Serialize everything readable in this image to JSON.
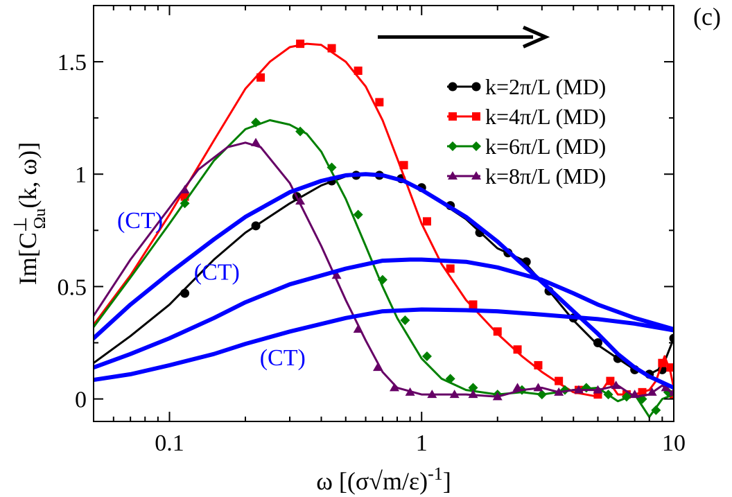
{
  "chart_data": {
    "type": "line",
    "panel_label": "(c)",
    "xscale": "log",
    "xlim": [
      0.05,
      10
    ],
    "ylim": [
      -0.1,
      1.75
    ],
    "xticks": [
      0.1,
      1,
      10
    ],
    "xtick_labels": [
      "0.1",
      "1",
      "10"
    ],
    "yticks": [
      0,
      0.5,
      1,
      1.5
    ],
    "ytick_labels": [
      "0",
      "0.5",
      "1",
      "1.5"
    ],
    "xlabel": {
      "pre": "ω [(σ√m/ε)",
      "sup": "-1",
      "post": "]"
    },
    "ylabel": {
      "pre": "Im[C",
      "sup": "⊥",
      "sub": "Ωu",
      "post": "(k, ω)]"
    },
    "arrow": {
      "from_x": 0.67,
      "to_x": 3.1,
      "y": 1.61,
      "color": "#000000"
    },
    "series": [
      {
        "name": "k=2π/L (MD)",
        "color": "#000000",
        "marker": "circle",
        "line": [
          [
            0.05,
            0.16
          ],
          [
            0.07,
            0.28
          ],
          [
            0.1,
            0.42
          ],
          [
            0.15,
            0.62
          ],
          [
            0.2,
            0.74
          ],
          [
            0.3,
            0.87
          ],
          [
            0.4,
            0.95
          ],
          [
            0.5,
            0.99
          ],
          [
            0.6,
            1.0
          ],
          [
            0.7,
            0.995
          ],
          [
            0.85,
            0.97
          ],
          [
            1.0,
            0.93
          ],
          [
            1.5,
            0.8
          ],
          [
            2.0,
            0.67
          ],
          [
            2.5,
            0.62
          ],
          [
            3.0,
            0.52
          ],
          [
            4.0,
            0.35
          ],
          [
            5.0,
            0.24
          ],
          [
            6.0,
            0.18
          ],
          [
            7.0,
            0.13
          ],
          [
            8.0,
            0.11
          ],
          [
            9.0,
            0.14
          ],
          [
            10,
            0.27
          ]
        ],
        "points": [
          [
            0.115,
            0.47
          ],
          [
            0.22,
            0.77
          ],
          [
            0.32,
            0.9
          ],
          [
            0.44,
            0.97
          ],
          [
            0.55,
            0.995
          ],
          [
            0.68,
            0.995
          ],
          [
            0.83,
            0.98
          ],
          [
            1.0,
            0.94
          ],
          [
            1.3,
            0.86
          ],
          [
            1.7,
            0.74
          ],
          [
            2.2,
            0.65
          ],
          [
            2.6,
            0.61
          ],
          [
            3.2,
            0.48
          ],
          [
            4.0,
            0.36
          ],
          [
            5.0,
            0.25
          ],
          [
            6.0,
            0.18
          ],
          [
            7.0,
            0.13
          ],
          [
            8.0,
            0.11
          ],
          [
            9.0,
            0.13
          ],
          [
            10,
            0.27
          ]
        ]
      },
      {
        "name": "k=4π/L (MD)",
        "color": "#ff0000",
        "marker": "square",
        "line": [
          [
            0.05,
            0.33
          ],
          [
            0.07,
            0.55
          ],
          [
            0.1,
            0.82
          ],
          [
            0.15,
            1.15
          ],
          [
            0.2,
            1.38
          ],
          [
            0.25,
            1.5
          ],
          [
            0.3,
            1.565
          ],
          [
            0.35,
            1.58
          ],
          [
            0.4,
            1.575
          ],
          [
            0.5,
            1.5
          ],
          [
            0.6,
            1.39
          ],
          [
            0.7,
            1.24
          ],
          [
            0.8,
            1.07
          ],
          [
            1.0,
            0.78
          ],
          [
            1.2,
            0.6
          ],
          [
            1.5,
            0.44
          ],
          [
            2.0,
            0.29
          ],
          [
            2.5,
            0.19
          ],
          [
            3.0,
            0.12
          ],
          [
            3.5,
            0.07
          ],
          [
            4.0,
            0.03
          ],
          [
            5.0,
            0.01
          ],
          [
            5.5,
            0.08
          ],
          [
            6.0,
            0.02
          ],
          [
            7.0,
            0.02
          ],
          [
            8.0,
            0.04
          ],
          [
            8.5,
            0.08
          ],
          [
            9.2,
            0.19
          ],
          [
            9.7,
            0.12
          ],
          [
            10,
            0.05
          ]
        ],
        "points": [
          [
            0.115,
            0.9
          ],
          [
            0.23,
            1.43
          ],
          [
            0.33,
            1.58
          ],
          [
            0.44,
            1.56
          ],
          [
            0.56,
            1.46
          ],
          [
            0.68,
            1.32
          ],
          [
            0.85,
            1.04
          ],
          [
            1.05,
            0.79
          ],
          [
            1.3,
            0.58
          ],
          [
            1.6,
            0.42
          ],
          [
            2.0,
            0.3
          ],
          [
            2.4,
            0.22
          ],
          [
            2.9,
            0.15
          ],
          [
            3.5,
            0.08
          ],
          [
            4.2,
            0.04
          ],
          [
            5.0,
            0.02
          ],
          [
            5.6,
            0.08
          ],
          [
            6.5,
            0.02
          ],
          [
            7.5,
            0.03
          ],
          [
            9.0,
            0.16
          ],
          [
            9.7,
            0.14
          ],
          [
            10,
            0.02
          ]
        ]
      },
      {
        "name": "k=6π/L (MD)",
        "color": "#008000",
        "marker": "diamond",
        "line": [
          [
            0.05,
            0.32
          ],
          [
            0.07,
            0.54
          ],
          [
            0.1,
            0.78
          ],
          [
            0.15,
            1.06
          ],
          [
            0.2,
            1.2
          ],
          [
            0.25,
            1.24
          ],
          [
            0.3,
            1.22
          ],
          [
            0.35,
            1.18
          ],
          [
            0.4,
            1.1
          ],
          [
            0.5,
            0.89
          ],
          [
            0.6,
            0.68
          ],
          [
            0.7,
            0.5
          ],
          [
            0.8,
            0.36
          ],
          [
            1.0,
            0.18
          ],
          [
            1.2,
            0.09
          ],
          [
            1.5,
            0.04
          ],
          [
            2.0,
            0.02
          ],
          [
            2.5,
            0.03
          ],
          [
            3.0,
            0.02
          ],
          [
            4.0,
            0.04
          ],
          [
            5.0,
            0.05
          ],
          [
            6.0,
            -0.01
          ],
          [
            7.0,
            0.02
          ],
          [
            8.0,
            -0.08
          ],
          [
            9.0,
            0.0
          ],
          [
            10,
            0.02
          ]
        ],
        "points": [
          [
            0.115,
            0.87
          ],
          [
            0.22,
            1.23
          ],
          [
            0.33,
            1.19
          ],
          [
            0.44,
            1.03
          ],
          [
            0.56,
            0.82
          ],
          [
            0.7,
            0.53
          ],
          [
            0.86,
            0.35
          ],
          [
            1.05,
            0.19
          ],
          [
            1.3,
            0.09
          ],
          [
            1.6,
            0.05
          ],
          [
            2.0,
            0.02
          ],
          [
            2.5,
            0.04
          ],
          [
            3.0,
            0.02
          ],
          [
            3.7,
            0.04
          ],
          [
            4.5,
            0.05
          ],
          [
            5.5,
            0.02
          ],
          [
            6.5,
            0.01
          ],
          [
            7.5,
            0.0
          ],
          [
            8.5,
            -0.05
          ],
          [
            9.5,
            0.03
          ]
        ]
      },
      {
        "name": "k=8π/L (MD)",
        "color": "#660066",
        "marker": "triangle",
        "line": [
          [
            0.05,
            0.37
          ],
          [
            0.07,
            0.62
          ],
          [
            0.1,
            0.85
          ],
          [
            0.13,
            1.02
          ],
          [
            0.17,
            1.12
          ],
          [
            0.2,
            1.14
          ],
          [
            0.23,
            1.12
          ],
          [
            0.3,
            0.96
          ],
          [
            0.4,
            0.68
          ],
          [
            0.5,
            0.44
          ],
          [
            0.6,
            0.26
          ],
          [
            0.7,
            0.12
          ],
          [
            0.8,
            0.05
          ],
          [
            1.0,
            0.02
          ],
          [
            1.5,
            0.02
          ],
          [
            2.0,
            0.01
          ],
          [
            2.5,
            0.04
          ],
          [
            3.0,
            0.05
          ],
          [
            3.5,
            0.03
          ],
          [
            4.0,
            0.04
          ],
          [
            5.0,
            0.04
          ],
          [
            6.0,
            0.06
          ],
          [
            7.0,
            0.01
          ],
          [
            8.0,
            0.02
          ],
          [
            9.0,
            0.06
          ],
          [
            10,
            0.02
          ]
        ],
        "points": [
          [
            0.115,
            0.93
          ],
          [
            0.22,
            1.14
          ],
          [
            0.33,
            0.88
          ],
          [
            0.46,
            0.55
          ],
          [
            0.56,
            0.31
          ],
          [
            0.67,
            0.14
          ],
          [
            0.78,
            0.05
          ],
          [
            0.9,
            0.03
          ],
          [
            1.1,
            0.02
          ],
          [
            1.35,
            0.02
          ],
          [
            1.6,
            0.02
          ],
          [
            2.0,
            0.01
          ],
          [
            2.4,
            0.05
          ],
          [
            2.9,
            0.05
          ],
          [
            3.5,
            0.03
          ],
          [
            4.2,
            0.04
          ],
          [
            5.0,
            0.04
          ],
          [
            5.9,
            0.06
          ],
          [
            7.0,
            0.02
          ],
          [
            8.2,
            0.03
          ],
          [
            9.3,
            0.05
          ],
          [
            10,
            0.03
          ]
        ]
      },
      {
        "name": "CT (k=2π/L)",
        "color": "#0000ff",
        "marker": "none",
        "legend": false,
        "line": [
          [
            0.05,
            0.27
          ],
          [
            0.07,
            0.42
          ],
          [
            0.1,
            0.56
          ],
          [
            0.15,
            0.71
          ],
          [
            0.2,
            0.81
          ],
          [
            0.3,
            0.92
          ],
          [
            0.4,
            0.97
          ],
          [
            0.5,
            0.995
          ],
          [
            0.6,
            1.0
          ],
          [
            0.7,
            0.995
          ],
          [
            0.85,
            0.97
          ],
          [
            1.0,
            0.93
          ],
          [
            1.5,
            0.81
          ],
          [
            2.0,
            0.7
          ],
          [
            3.0,
            0.52
          ],
          [
            4.0,
            0.39
          ],
          [
            5.0,
            0.29
          ],
          [
            6.0,
            0.2
          ],
          [
            7.0,
            0.14
          ],
          [
            8.0,
            0.1
          ],
          [
            10,
            0.05
          ]
        ]
      },
      {
        "name": "CT (k=4π/L)",
        "color": "#0000ff",
        "marker": "none",
        "legend": false,
        "line": [
          [
            0.05,
            0.14
          ],
          [
            0.07,
            0.2
          ],
          [
            0.1,
            0.27
          ],
          [
            0.15,
            0.36
          ],
          [
            0.2,
            0.43
          ],
          [
            0.3,
            0.51
          ],
          [
            0.5,
            0.58
          ],
          [
            0.7,
            0.615
          ],
          [
            0.9,
            0.62
          ],
          [
            1.0,
            0.62
          ],
          [
            1.5,
            0.61
          ],
          [
            2.0,
            0.585
          ],
          [
            3.0,
            0.53
          ],
          [
            4.0,
            0.47
          ],
          [
            5.0,
            0.42
          ],
          [
            7.0,
            0.36
          ],
          [
            10,
            0.31
          ]
        ]
      },
      {
        "name": "CT (k=6π/L)",
        "color": "#0000ff",
        "marker": "none",
        "legend": false,
        "line": [
          [
            0.05,
            0.085
          ],
          [
            0.07,
            0.11
          ],
          [
            0.1,
            0.15
          ],
          [
            0.15,
            0.2
          ],
          [
            0.2,
            0.245
          ],
          [
            0.3,
            0.3
          ],
          [
            0.5,
            0.36
          ],
          [
            0.7,
            0.39
          ],
          [
            1.0,
            0.398
          ],
          [
            1.5,
            0.395
          ],
          [
            2.0,
            0.39
          ],
          [
            3.0,
            0.375
          ],
          [
            5.0,
            0.355
          ],
          [
            7.0,
            0.335
          ],
          [
            10,
            0.305
          ]
        ]
      }
    ],
    "annotations": [
      {
        "text": "(CT)",
        "x": 0.062,
        "y": 0.76,
        "color": "#0000ff"
      },
      {
        "text": "(CT)",
        "x": 0.125,
        "y": 0.53,
        "color": "#0000ff"
      },
      {
        "text": "(CT)",
        "x": 0.228,
        "y": 0.15,
        "color": "#0000ff"
      }
    ]
  }
}
